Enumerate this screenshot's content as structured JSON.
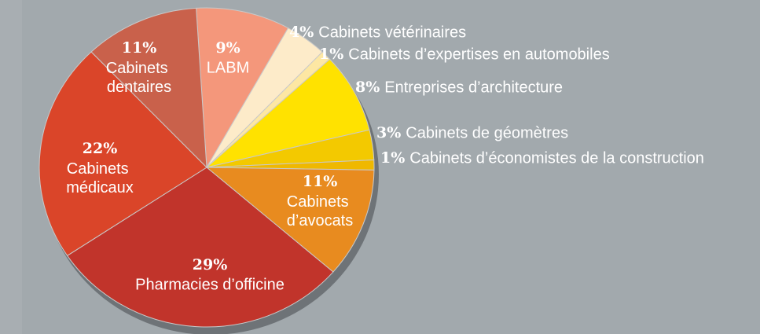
{
  "chart_data": {
    "type": "pie",
    "categories": [
      "LABM",
      "Cabinets vétérinaires",
      "Cabinets d’expertises en automobiles",
      "Entreprises d’architecture",
      "Cabinets de géomètres",
      "Cabinets d’économistes de la construction",
      "Cabinets d’avocats",
      "Pharmacies d’officine",
      "Cabinets médicaux",
      "Cabinets dentaires"
    ],
    "values": [
      9,
      4,
      1,
      8,
      3,
      1,
      11,
      29,
      22,
      11
    ],
    "value_labels": [
      "9%",
      "4%",
      "1%",
      "8%",
      "3%",
      "1%",
      "11%",
      "29%",
      "22%",
      "11%"
    ],
    "colors": [
      "#f4977b",
      "#fdebc9",
      "#fde7a3",
      "#ffe200",
      "#f3c900",
      "#efb800",
      "#e88b1f",
      "#c1342b",
      "#da4529",
      "#c9614b"
    ]
  }
}
